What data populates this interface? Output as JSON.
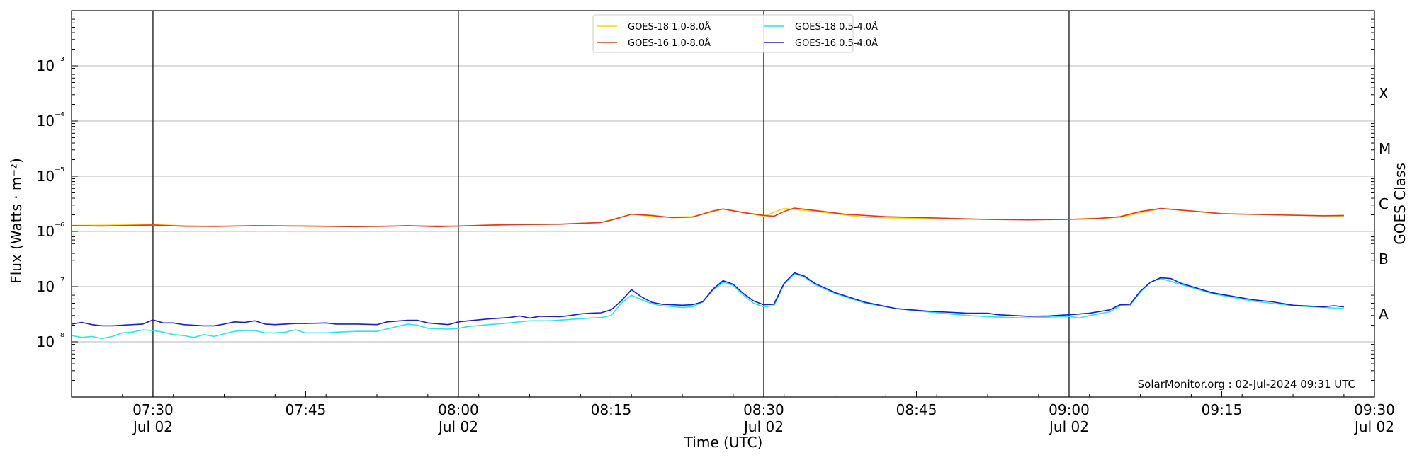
{
  "chart_data": {
    "type": "line",
    "y_scale": "log",
    "xlabel": "Time (UTC)",
    "ylabel": "Flux (Watts · m⁻²)",
    "right_ylabel": "GOES Class",
    "x_range": [
      "07:22",
      "09:30"
    ],
    "ylim": [
      1e-09,
      0.01
    ],
    "y_ticks": [
      {
        "value": 1e-08,
        "label": "10⁻⁸"
      },
      {
        "value": 1e-07,
        "label": "10⁻⁷"
      },
      {
        "value": 1e-06,
        "label": "10⁻⁶"
      },
      {
        "value": 1e-05,
        "label": "10⁻⁵"
      },
      {
        "value": 0.0001,
        "label": "10⁻⁴"
      },
      {
        "value": 0.001,
        "label": "10⁻³"
      }
    ],
    "x_ticks": [
      {
        "time": "07:30",
        "label": "07:30",
        "sublabel": "Jul 02",
        "day_line": true
      },
      {
        "time": "07:45",
        "label": "07:45",
        "sublabel": "",
        "day_line": false
      },
      {
        "time": "08:00",
        "label": "08:00",
        "sublabel": "Jul 02",
        "day_line": true
      },
      {
        "time": "08:15",
        "label": "08:15",
        "sublabel": "",
        "day_line": false
      },
      {
        "time": "08:30",
        "label": "08:30",
        "sublabel": "Jul 02",
        "day_line": true
      },
      {
        "time": "08:45",
        "label": "08:45",
        "sublabel": "",
        "day_line": false
      },
      {
        "time": "09:00",
        "label": "09:00",
        "sublabel": "Jul 02",
        "day_line": true
      },
      {
        "time": "09:15",
        "label": "09:15",
        "sublabel": "",
        "day_line": false
      },
      {
        "time": "09:30",
        "label": "09:30",
        "sublabel": "Jul 02",
        "day_line": false
      }
    ],
    "goes_classes": [
      {
        "label": "A",
        "value": 1e-08
      },
      {
        "label": "B",
        "value": 1e-07
      },
      {
        "label": "C",
        "value": 1e-06
      },
      {
        "label": "M",
        "value": 1e-05
      },
      {
        "label": "X",
        "value": 0.0001
      }
    ],
    "grid": "horizontal at major y ticks",
    "legend": "top-center, two columns",
    "annotation": "SolarMonitor.org : 02-Jul-2024 09:31 UTC",
    "series": [
      {
        "name": "GOES-18 1.0-8.0Å",
        "color": "#ffd700",
        "points": [
          [
            "07:22",
            1.28e-06
          ],
          [
            "07:30",
            1.32e-06
          ],
          [
            "07:35",
            1.24e-06
          ],
          [
            "07:40",
            1.27e-06
          ],
          [
            "07:50",
            1.22e-06
          ],
          [
            "07:55",
            1.27e-06
          ],
          [
            "08:00",
            1.25e-06
          ],
          [
            "08:05",
            1.32e-06
          ],
          [
            "08:10",
            1.36e-06
          ],
          [
            "08:14",
            1.45e-06
          ],
          [
            "08:17",
            2.05e-06
          ],
          [
            "08:20",
            1.8e-06
          ],
          [
            "08:23",
            1.85e-06
          ],
          [
            "08:26",
            2.55e-06
          ],
          [
            "08:30",
            1.9e-06
          ],
          [
            "08:32",
            2.6e-06
          ],
          [
            "08:35",
            2.3e-06
          ],
          [
            "08:40",
            1.8e-06
          ],
          [
            "08:50",
            1.65e-06
          ],
          [
            "09:00",
            1.65e-06
          ],
          [
            "09:05",
            1.8e-06
          ],
          [
            "09:09",
            2.6e-06
          ],
          [
            "09:15",
            2.1e-06
          ],
          [
            "09:20",
            2e-06
          ],
          [
            "09:27",
            1.9e-06
          ]
        ]
      },
      {
        "name": "GOES-16 1.0-8.0Å",
        "color": "#e8341c",
        "points": [
          [
            "07:22",
            1.27e-06
          ],
          [
            "07:25",
            1.25e-06
          ],
          [
            "07:30",
            1.31e-06
          ],
          [
            "07:33",
            1.24e-06
          ],
          [
            "07:36",
            1.23e-06
          ],
          [
            "07:40",
            1.27e-06
          ],
          [
            "07:45",
            1.25e-06
          ],
          [
            "07:50",
            1.22e-06
          ],
          [
            "07:53",
            1.24e-06
          ],
          [
            "07:55",
            1.27e-06
          ],
          [
            "07:58",
            1.22e-06
          ],
          [
            "08:00",
            1.25e-06
          ],
          [
            "08:03",
            1.3e-06
          ],
          [
            "08:06",
            1.33e-06
          ],
          [
            "08:10",
            1.35e-06
          ],
          [
            "08:12",
            1.4e-06
          ],
          [
            "08:14",
            1.45e-06
          ],
          [
            "08:15",
            1.6e-06
          ],
          [
            "08:17",
            2.05e-06
          ],
          [
            "08:19",
            1.95e-06
          ],
          [
            "08:21",
            1.78e-06
          ],
          [
            "08:23",
            1.82e-06
          ],
          [
            "08:25",
            2.35e-06
          ],
          [
            "08:26",
            2.55e-06
          ],
          [
            "08:28",
            2.2e-06
          ],
          [
            "08:30",
            1.95e-06
          ],
          [
            "08:31",
            1.88e-06
          ],
          [
            "08:32",
            2.3e-06
          ],
          [
            "08:33",
            2.65e-06
          ],
          [
            "08:35",
            2.4e-06
          ],
          [
            "08:38",
            2.05e-06
          ],
          [
            "08:42",
            1.85e-06
          ],
          [
            "08:47",
            1.75e-06
          ],
          [
            "08:52",
            1.65e-06
          ],
          [
            "08:56",
            1.62e-06
          ],
          [
            "09:00",
            1.65e-06
          ],
          [
            "09:03",
            1.72e-06
          ],
          [
            "09:05",
            1.85e-06
          ],
          [
            "09:07",
            2.3e-06
          ],
          [
            "09:09",
            2.6e-06
          ],
          [
            "09:12",
            2.35e-06
          ],
          [
            "09:15",
            2.1e-06
          ],
          [
            "09:20",
            2e-06
          ],
          [
            "09:25",
            1.92e-06
          ],
          [
            "09:27",
            1.95e-06
          ]
        ]
      },
      {
        "name": "GOES-18 0.5-4.0Å",
        "color": "#25e8f0",
        "points": [
          [
            "07:22",
            1.3e-08
          ],
          [
            "07:23",
            1.2e-08
          ],
          [
            "07:24",
            1.25e-08
          ],
          [
            "07:25",
            1.15e-08
          ],
          [
            "07:26",
            1.25e-08
          ],
          [
            "07:27",
            1.45e-08
          ],
          [
            "07:28",
            1.5e-08
          ],
          [
            "07:29",
            1.65e-08
          ],
          [
            "07:30",
            1.6e-08
          ],
          [
            "07:31",
            1.5e-08
          ],
          [
            "07:32",
            1.35e-08
          ],
          [
            "07:33",
            1.3e-08
          ],
          [
            "07:34",
            1.2e-08
          ],
          [
            "07:35",
            1.35e-08
          ],
          [
            "07:36",
            1.25e-08
          ],
          [
            "07:37",
            1.4e-08
          ],
          [
            "07:38",
            1.55e-08
          ],
          [
            "07:39",
            1.6e-08
          ],
          [
            "07:40",
            1.6e-08
          ],
          [
            "07:41",
            1.45e-08
          ],
          [
            "07:42",
            1.45e-08
          ],
          [
            "07:43",
            1.5e-08
          ],
          [
            "07:44",
            1.65e-08
          ],
          [
            "07:45",
            1.45e-08
          ],
          [
            "07:47",
            1.45e-08
          ],
          [
            "07:48",
            1.5e-08
          ],
          [
            "07:50",
            1.55e-08
          ],
          [
            "07:52",
            1.55e-08
          ],
          [
            "07:54",
            1.9e-08
          ],
          [
            "07:55",
            2.1e-08
          ],
          [
            "07:56",
            2e-08
          ],
          [
            "07:57",
            1.75e-08
          ],
          [
            "07:59",
            1.7e-08
          ],
          [
            "08:00",
            1.75e-08
          ],
          [
            "08:01",
            1.9e-08
          ],
          [
            "08:03",
            2.05e-08
          ],
          [
            "08:05",
            2.2e-08
          ],
          [
            "08:07",
            2.4e-08
          ],
          [
            "08:09",
            2.4e-08
          ],
          [
            "08:11",
            2.55e-08
          ],
          [
            "08:13",
            2.7e-08
          ],
          [
            "08:14",
            2.75e-08
          ],
          [
            "08:15",
            3e-08
          ],
          [
            "08:16",
            5e-08
          ],
          [
            "08:17",
            7e-08
          ],
          [
            "08:18",
            5.8e-08
          ],
          [
            "08:19",
            4.9e-08
          ],
          [
            "08:20",
            4.5e-08
          ],
          [
            "08:22",
            4.2e-08
          ],
          [
            "08:23",
            4.3e-08
          ],
          [
            "08:24",
            5.3e-08
          ],
          [
            "08:25",
            8.5e-08
          ],
          [
            "08:26",
            1.2e-07
          ],
          [
            "08:27",
            1.05e-07
          ],
          [
            "08:28",
            7e-08
          ],
          [
            "08:29",
            5e-08
          ],
          [
            "08:30",
            4.3e-08
          ],
          [
            "08:31",
            4.5e-08
          ],
          [
            "08:32",
            1.1e-07
          ],
          [
            "08:33",
            1.7e-07
          ],
          [
            "08:34",
            1.5e-07
          ],
          [
            "08:35",
            1.1e-07
          ],
          [
            "08:37",
            7.5e-08
          ],
          [
            "08:40",
            5e-08
          ],
          [
            "08:43",
            4e-08
          ],
          [
            "08:46",
            3.5e-08
          ],
          [
            "08:50",
            3e-08
          ],
          [
            "08:53",
            2.8e-08
          ],
          [
            "08:56",
            2.7e-08
          ],
          [
            "08:58",
            2.8e-08
          ],
          [
            "09:00",
            2.9e-08
          ],
          [
            "09:01",
            2.7e-08
          ],
          [
            "09:02",
            3e-08
          ],
          [
            "09:04",
            3.5e-08
          ],
          [
            "09:05",
            4.5e-08
          ],
          [
            "09:06",
            4.6e-08
          ],
          [
            "09:07",
            8e-08
          ],
          [
            "09:08",
            1.2e-07
          ],
          [
            "09:09",
            1.4e-07
          ],
          [
            "09:11",
            1.1e-07
          ],
          [
            "09:14",
            7.5e-08
          ],
          [
            "09:18",
            5.5e-08
          ],
          [
            "09:22",
            4.5e-08
          ],
          [
            "09:27",
            4e-08
          ]
        ]
      },
      {
        "name": "GOES-16 0.5-4.0Å",
        "color": "#1a1adf",
        "points": [
          [
            "07:22",
            2.1e-08
          ],
          [
            "07:23",
            2.25e-08
          ],
          [
            "07:24",
            2.05e-08
          ],
          [
            "07:25",
            1.95e-08
          ],
          [
            "07:26",
            1.95e-08
          ],
          [
            "07:27",
            2e-08
          ],
          [
            "07:28",
            2.05e-08
          ],
          [
            "07:29",
            2.1e-08
          ],
          [
            "07:30",
            2.5e-08
          ],
          [
            "07:31",
            2.2e-08
          ],
          [
            "07:32",
            2.2e-08
          ],
          [
            "07:33",
            2.05e-08
          ],
          [
            "07:34",
            2e-08
          ],
          [
            "07:35",
            1.95e-08
          ],
          [
            "07:36",
            1.95e-08
          ],
          [
            "07:37",
            2.1e-08
          ],
          [
            "07:38",
            2.3e-08
          ],
          [
            "07:39",
            2.25e-08
          ],
          [
            "07:40",
            2.4e-08
          ],
          [
            "07:41",
            2.1e-08
          ],
          [
            "07:42",
            2.05e-08
          ],
          [
            "07:43",
            2.1e-08
          ],
          [
            "07:44",
            2.15e-08
          ],
          [
            "07:45",
            2.15e-08
          ],
          [
            "07:47",
            2.2e-08
          ],
          [
            "07:48",
            2.1e-08
          ],
          [
            "07:50",
            2.1e-08
          ],
          [
            "07:52",
            2.05e-08
          ],
          [
            "07:53",
            2.3e-08
          ],
          [
            "07:55",
            2.45e-08
          ],
          [
            "07:56",
            2.45e-08
          ],
          [
            "07:57",
            2.2e-08
          ],
          [
            "07:59",
            2.05e-08
          ],
          [
            "08:00",
            2.3e-08
          ],
          [
            "08:01",
            2.4e-08
          ],
          [
            "08:03",
            2.6e-08
          ],
          [
            "08:05",
            2.75e-08
          ],
          [
            "08:06",
            2.95e-08
          ],
          [
            "08:07",
            2.7e-08
          ],
          [
            "08:08",
            2.9e-08
          ],
          [
            "08:10",
            2.85e-08
          ],
          [
            "08:11",
            3e-08
          ],
          [
            "08:12",
            3.2e-08
          ],
          [
            "08:13",
            3.3e-08
          ],
          [
            "08:14",
            3.35e-08
          ],
          [
            "08:15",
            3.8e-08
          ],
          [
            "08:16",
            5.5e-08
          ],
          [
            "08:17",
            8.8e-08
          ],
          [
            "08:18",
            6.5e-08
          ],
          [
            "08:19",
            5.2e-08
          ],
          [
            "08:20",
            4.8e-08
          ],
          [
            "08:22",
            4.6e-08
          ],
          [
            "08:23",
            4.7e-08
          ],
          [
            "08:24",
            5.3e-08
          ],
          [
            "08:25",
            9e-08
          ],
          [
            "08:26",
            1.28e-07
          ],
          [
            "08:27",
            1.1e-07
          ],
          [
            "08:28",
            7.5e-08
          ],
          [
            "08:29",
            5.5e-08
          ],
          [
            "08:30",
            4.7e-08
          ],
          [
            "08:31",
            4.8e-08
          ],
          [
            "08:32",
            1.15e-07
          ],
          [
            "08:33",
            1.78e-07
          ],
          [
            "08:34",
            1.55e-07
          ],
          [
            "08:35",
            1.15e-07
          ],
          [
            "08:37",
            7.8e-08
          ],
          [
            "08:40",
            5.2e-08
          ],
          [
            "08:43",
            4e-08
          ],
          [
            "08:46",
            3.6e-08
          ],
          [
            "08:50",
            3.3e-08
          ],
          [
            "08:52",
            3.3e-08
          ],
          [
            "08:53",
            3.1e-08
          ],
          [
            "08:56",
            2.9e-08
          ],
          [
            "08:58",
            2.95e-08
          ],
          [
            "09:00",
            3.1e-08
          ],
          [
            "09:02",
            3.3e-08
          ],
          [
            "09:04",
            3.8e-08
          ],
          [
            "09:05",
            4.7e-08
          ],
          [
            "09:06",
            4.8e-08
          ],
          [
            "09:07",
            8.3e-08
          ],
          [
            "09:08",
            1.2e-07
          ],
          [
            "09:09",
            1.45e-07
          ],
          [
            "09:10",
            1.4e-07
          ],
          [
            "09:11",
            1.15e-07
          ],
          [
            "09:14",
            7.8e-08
          ],
          [
            "09:18",
            5.8e-08
          ],
          [
            "09:20",
            5.3e-08
          ],
          [
            "09:22",
            4.6e-08
          ],
          [
            "09:25",
            4.3e-08
          ],
          [
            "09:26",
            4.5e-08
          ],
          [
            "09:27",
            4.3e-08
          ]
        ]
      }
    ]
  }
}
